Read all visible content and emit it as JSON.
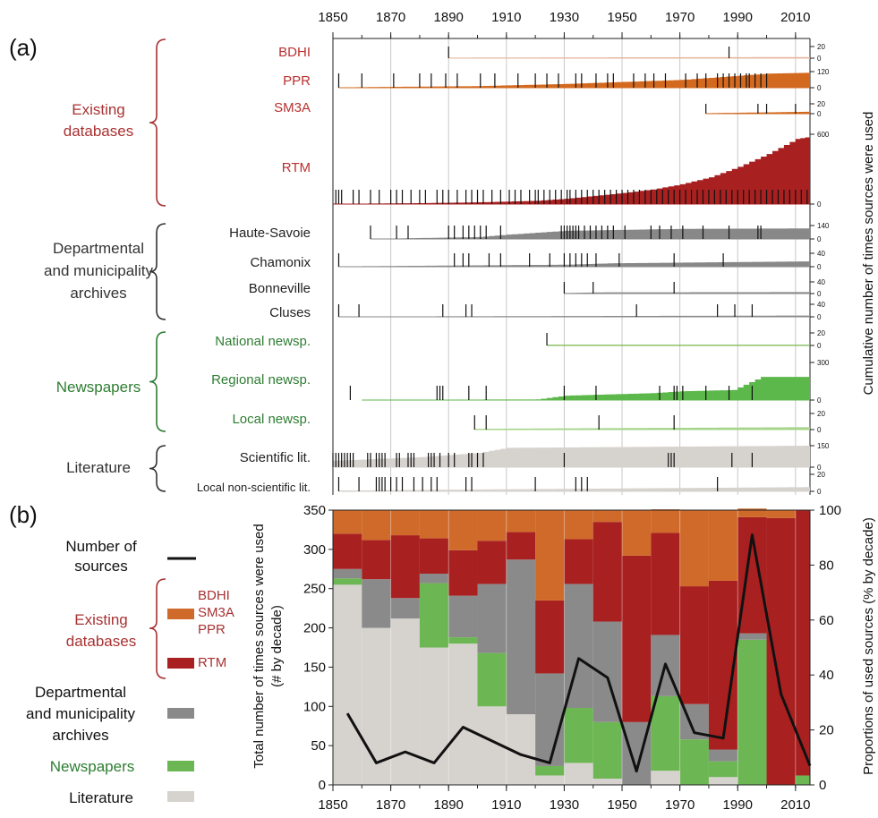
{
  "panel_a": {
    "letter": "(a)",
    "ylabel": "Cumulative number of times sources were used",
    "x_ticks": [
      "1850",
      "1870",
      "1890",
      "1910",
      "1930",
      "1950",
      "1970",
      "1990",
      "2010"
    ],
    "groups": [
      {
        "label": [
          "Existing",
          "databases"
        ],
        "color": "#a83232"
      },
      {
        "label": [
          "Departmental",
          "and municipality",
          "archives"
        ],
        "color": "#333333"
      },
      {
        "label": [
          "Newspapers"
        ],
        "color": "#2e7d32"
      },
      {
        "label": [
          "Literature"
        ],
        "color": "#333333"
      }
    ],
    "rows": [
      {
        "label": "BDHI",
        "color": "#b8312f",
        "fill": "#e6b8a0",
        "ymax": "20",
        "y0": "0",
        "events": [
          1890,
          1987
        ],
        "cum": [
          [
            1890,
            1
          ],
          [
            2015,
            2
          ]
        ]
      },
      {
        "label": "PPR",
        "color": "#b8312f",
        "fill": "#d2691e",
        "ymax": "120",
        "y0": "0",
        "events": [
          1852,
          1860,
          1871,
          1880,
          1884,
          1889,
          1893,
          1901,
          1906,
          1914,
          1920,
          1924,
          1928,
          1934,
          1936,
          1941,
          1945,
          1947,
          1954,
          1958,
          1961,
          1965,
          1972,
          1976,
          1979,
          1983,
          1985,
          1987,
          1989,
          1991,
          1993,
          1994,
          1996,
          1998,
          2000
        ],
        "cum": [
          [
            1852,
            3
          ],
          [
            1900,
            12
          ],
          [
            1930,
            28
          ],
          [
            1970,
            58
          ],
          [
            2000,
            105
          ],
          [
            2015,
            112
          ]
        ]
      },
      {
        "label": "SM3A",
        "color": "#b8312f",
        "fill": "#d2691e",
        "ymax": "20",
        "y0": "0",
        "events": [
          1979,
          1997,
          2000,
          2010
        ],
        "cum": [
          [
            1979,
            1
          ],
          [
            2015,
            4
          ]
        ]
      },
      {
        "label": "RTM",
        "color": "#b8312f",
        "fill": "#a82020",
        "ymax": "600",
        "y0": "0",
        "events": [
          1851,
          1852,
          1853,
          1857,
          1859,
          1863,
          1866,
          1870,
          1872,
          1874,
          1877,
          1880,
          1882,
          1886,
          1888,
          1890,
          1893,
          1896,
          1898,
          1900,
          1902,
          1905,
          1908,
          1911,
          1913,
          1915,
          1918,
          1920,
          1921,
          1923,
          1925,
          1927,
          1929,
          1931,
          1932,
          1934,
          1936,
          1938,
          1940,
          1942,
          1944,
          1946,
          1948,
          1950,
          1952,
          1954,
          1956,
          1958,
          1960,
          1962,
          1964,
          1966,
          1968,
          1970,
          1972,
          1974,
          1976,
          1978,
          1980,
          1982,
          1984,
          1986,
          1988,
          1990,
          1992,
          1994,
          1996,
          1998,
          2000,
          2002,
          2004,
          2006,
          2008,
          2010,
          2012,
          2014
        ],
        "cum": [
          [
            1850,
            2
          ],
          [
            1880,
            8
          ],
          [
            1900,
            15
          ],
          [
            1920,
            28
          ],
          [
            1930,
            45
          ],
          [
            1940,
            70
          ],
          [
            1950,
            95
          ],
          [
            1960,
            125
          ],
          [
            1970,
            170
          ],
          [
            1980,
            230
          ],
          [
            1990,
            320
          ],
          [
            2000,
            430
          ],
          [
            2010,
            560
          ],
          [
            2015,
            580
          ]
        ]
      },
      {
        "label": "Haute-Savoie",
        "color": "#222222",
        "fill": "#888888",
        "ymax": "140",
        "y0": "0",
        "events": [
          1863,
          1872,
          1876,
          1890,
          1892,
          1895,
          1897,
          1899,
          1901,
          1903,
          1908,
          1929,
          1930,
          1931,
          1932,
          1933,
          1934,
          1935,
          1937,
          1939,
          1941,
          1943,
          1945,
          1947,
          1951,
          1960,
          1963,
          1967,
          1971,
          1978,
          1987,
          1997,
          1998
        ],
        "cum": [
          [
            1863,
            1
          ],
          [
            1900,
            20
          ],
          [
            1910,
            45
          ],
          [
            1930,
            85
          ],
          [
            1950,
            95
          ],
          [
            1970,
            105
          ],
          [
            2015,
            110
          ]
        ]
      },
      {
        "label": "Chamonix",
        "color": "#222222",
        "fill": "#888888",
        "ymax": "40",
        "y0": "0",
        "events": [
          1852,
          1892,
          1895,
          1897,
          1904,
          1908,
          1918,
          1925,
          1930,
          1932,
          1934,
          1936,
          1938,
          1941,
          1949,
          1968,
          1985
        ],
        "cum": [
          [
            1852,
            1
          ],
          [
            1930,
            6
          ],
          [
            1945,
            10
          ],
          [
            2015,
            16
          ]
        ]
      },
      {
        "label": "Bonneville",
        "color": "#222222",
        "fill": "#888888",
        "ymax": "40",
        "y0": "0",
        "events": [
          1930,
          1940,
          1968
        ],
        "cum": [
          [
            1930,
            2
          ],
          [
            1940,
            4
          ],
          [
            2015,
            5
          ]
        ]
      },
      {
        "label": "Cluses",
        "color": "#222222",
        "fill": "#888888",
        "ymax": "40",
        "y0": "0",
        "events": [
          1852,
          1859,
          1888,
          1896,
          1898,
          1955,
          1983,
          1989,
          1995
        ],
        "cum": [
          [
            1852,
            1
          ],
          [
            2015,
            4
          ]
        ]
      },
      {
        "label": "National newsp.",
        "color": "#2e7d32",
        "fill": "#7ab648",
        "ymax": "20",
        "y0": "0",
        "events": [
          1924
        ],
        "cum": [
          [
            1924,
            1
          ],
          [
            2015,
            1
          ]
        ]
      },
      {
        "label": "Regional newsp.",
        "color": "#2e7d32",
        "fill": "#5cb84a",
        "ymax": "300",
        "y0": "0",
        "events": [
          1856,
          1886,
          1887,
          1888,
          1897,
          1903,
          1930,
          1941,
          1963,
          1968,
          1969,
          1971,
          1979,
          1987,
          1995
        ],
        "cum": [
          [
            1860,
            2
          ],
          [
            1920,
            5
          ],
          [
            1930,
            35
          ],
          [
            1960,
            55
          ],
          [
            1970,
            70
          ],
          [
            1988,
            80
          ],
          [
            1998,
            185
          ],
          [
            2015,
            185
          ]
        ]
      },
      {
        "label": "Local newsp.",
        "color": "#2e7d32",
        "fill": "#a5d48a",
        "ymax": "20",
        "y0": "0",
        "events": [
          1899,
          1903,
          1942,
          1968
        ],
        "cum": [
          [
            1899,
            1
          ],
          [
            2015,
            3
          ]
        ]
      },
      {
        "label": "Scientific lit.",
        "color": "#222222",
        "fill": "#d6d2ce",
        "ymax": "150",
        "y0": "0",
        "events": [
          1850,
          1851,
          1852,
          1853,
          1854,
          1855,
          1856,
          1857,
          1862,
          1863,
          1865,
          1866,
          1867,
          1868,
          1872,
          1873,
          1876,
          1877,
          1878,
          1883,
          1884,
          1885,
          1887,
          1890,
          1892,
          1897,
          1898,
          1900,
          1902,
          1930,
          1966,
          1967,
          1968,
          1988,
          1995
        ],
        "cum": [
          [
            1850,
            45
          ],
          [
            1880,
            70
          ],
          [
            1900,
            100
          ],
          [
            1910,
            135
          ],
          [
            2015,
            150
          ]
        ]
      },
      {
        "label": "Local non-scientific lit.",
        "color": "#222222",
        "fill": "#d6d2ce",
        "ymax": "20",
        "y0": "0",
        "events": [
          1852,
          1859,
          1865,
          1866,
          1867,
          1868,
          1870,
          1872,
          1874,
          1878,
          1881,
          1884,
          1886,
          1896,
          1898,
          1920,
          1934,
          1936,
          1938,
          1983
        ],
        "cum": [
          [
            1852,
            1
          ],
          [
            2015,
            5
          ]
        ]
      }
    ]
  },
  "chart_data": {
    "type": "bar",
    "letter": "(b)",
    "ylabel_left": "Total number of times sources were used (# by decade)",
    "ylabel_right": "Proportions of used sources (% by decade)",
    "ylim_left": [
      0,
      350
    ],
    "ylim_right": [
      0,
      100
    ],
    "y_left_ticks": [
      "0",
      "50",
      "100",
      "150",
      "200",
      "250",
      "300",
      "350"
    ],
    "y_right_ticks": [
      "0",
      "20",
      "40",
      "60",
      "80",
      "100"
    ],
    "x_ticks": [
      "1850",
      "1870",
      "1890",
      "1910",
      "1930",
      "1950",
      "1970",
      "1990",
      "2010"
    ],
    "decades": [
      1850,
      1860,
      1870,
      1880,
      1890,
      1900,
      1910,
      1920,
      1930,
      1940,
      1950,
      1960,
      1970,
      1980,
      1990,
      2000,
      2010
    ],
    "series": [
      {
        "key": "literature",
        "color": "#d6d2ce",
        "values": [
          255,
          200,
          212,
          175,
          180,
          100,
          90,
          12,
          28,
          8,
          0,
          18,
          0,
          10,
          0,
          0,
          0
        ]
      },
      {
        "key": "newspapers",
        "color": "#6cb653",
        "values": [
          8,
          0,
          0,
          82,
          8,
          68,
          0,
          12,
          70,
          72,
          0,
          95,
          58,
          20,
          185,
          0,
          12
        ]
      },
      {
        "key": "archives",
        "color": "#8a8a8a",
        "values": [
          12,
          62,
          26,
          12,
          53,
          88,
          197,
          118,
          158,
          128,
          80,
          78,
          45,
          15,
          8,
          0,
          0
        ]
      },
      {
        "key": "rtm",
        "color": "#a82020",
        "values": [
          45,
          50,
          80,
          45,
          58,
          55,
          35,
          93,
          57,
          127,
          212,
          130,
          150,
          215,
          148,
          340,
          338
        ]
      },
      {
        "key": "bdhi_sm3a_ppr",
        "color": "#cf6a2a",
        "values": [
          30,
          38,
          32,
          36,
          51,
          39,
          28,
          115,
          37,
          15,
          58,
          30,
          97,
          90,
          11,
          10,
          0
        ]
      }
    ],
    "line": {
      "key": "number_of_sources",
      "color": "#111111",
      "values": [
        26,
        8,
        12,
        8,
        21,
        16,
        11,
        8,
        46,
        39,
        5,
        44,
        19,
        17,
        91,
        33,
        7
      ]
    },
    "legend": {
      "number_label": [
        "Number of",
        "sources"
      ],
      "db_label": [
        "Existing",
        "databases"
      ],
      "db_items": [
        "BDHI",
        "SM3A",
        "PPR"
      ],
      "rtm_label": "RTM",
      "archives_label": [
        "Departmental",
        "and municipality",
        "archives"
      ],
      "news_label": "Newspapers",
      "lit_label": "Literature"
    }
  }
}
